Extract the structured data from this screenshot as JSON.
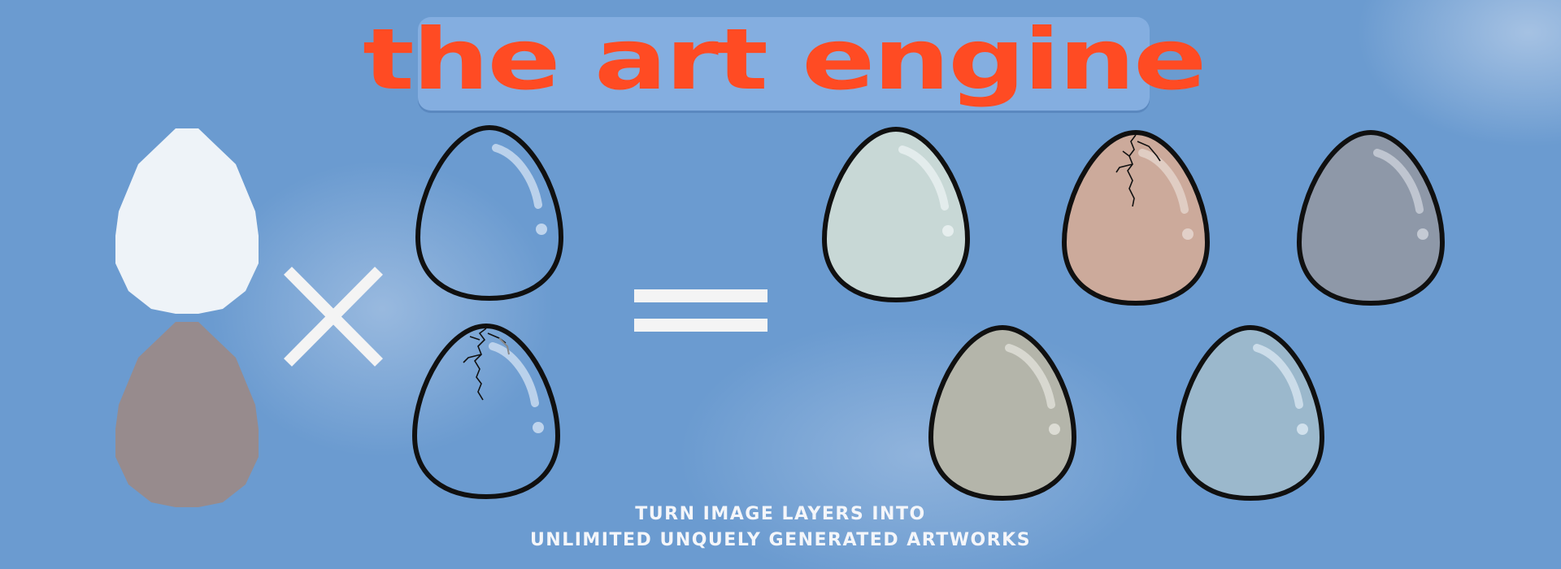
{
  "header": {
    "title": "the art engine"
  },
  "caption": {
    "line1": "TURN IMAGE LAYERS INTO",
    "line2": "UNLIMITED UNQUELY GENERATED  ARTWORKS"
  },
  "colors": {
    "background": "#6b9bd0",
    "title_box": "#84aee0",
    "title_text": "#ff4b23",
    "base_white": "#eef3f8",
    "base_mauve": "#978b8d",
    "egg_mint": "#c8d8d6",
    "egg_peach": "#ccaa9b",
    "egg_slate": "#8e98a8",
    "egg_khaki": "#b4b5aa",
    "egg_blue": "#9bb8cc"
  },
  "icons": {
    "multiply": "multiply-icon",
    "equals": "equals-icon"
  }
}
